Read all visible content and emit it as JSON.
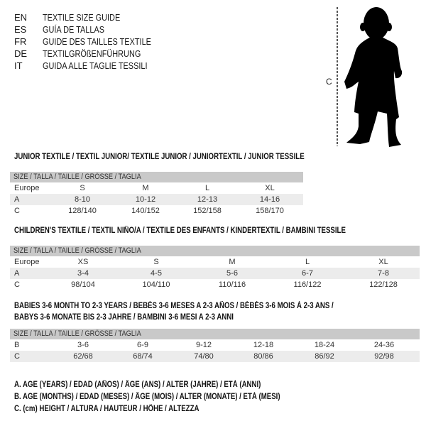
{
  "languages": [
    {
      "code": "EN",
      "text": "TEXTILE SIZE GUIDE"
    },
    {
      "code": "ES",
      "text": "GUÍA DE TALLAS"
    },
    {
      "code": "FR",
      "text": "GUIDE DES TAILLES TEXTILE"
    },
    {
      "code": "DE",
      "text": "TEXTILGRÖßENFÜHRUNG"
    },
    {
      "code": "IT",
      "text": "GUIDA ALLE TAGLIE TESSILI"
    }
  ],
  "figure": {
    "measure_label": "C",
    "icon": "child-silhouette"
  },
  "tables": [
    {
      "title_lines": [
        "JUNIOR TEXTILE / TEXTIL JUNIOR/ TEXTILE JUNIOR / JUNIORTEXTIL / JUNIOR TESSILE"
      ],
      "header": "SIZE / TALLA / TAILLE / GRÖSSE / TAGLIA",
      "rows": [
        {
          "label": "Europe",
          "values": [
            "S",
            "M",
            "L",
            "XL"
          ]
        },
        {
          "label": "A",
          "values": [
            "8-10",
            "10-12",
            "12-13",
            "14-16"
          ]
        },
        {
          "label": "C",
          "values": [
            "128/140",
            "140/152",
            "152/158",
            "158/170"
          ]
        }
      ]
    },
    {
      "title_lines": [
        "CHILDREN'S TEXTILE / TEXTIL NIÑO/A / TEXTILE DES ENFANTS / KINDERTEXTIL / BAMBINI TESSILE"
      ],
      "header": "SIZE / TALLA / TAILLE / GRÖSSE / TAGLIA",
      "rows": [
        {
          "label": "Europe",
          "values": [
            "XS",
            "S",
            "M",
            "L",
            "XL"
          ]
        },
        {
          "label": "A",
          "values": [
            "3-4",
            "4-5",
            "5-6",
            "6-7",
            "7-8"
          ]
        },
        {
          "label": "C",
          "values": [
            "98/104",
            "104/110",
            "110/116",
            "116/122",
            "122/128"
          ]
        }
      ]
    },
    {
      "title_lines": [
        "BABIES 3-6 MONTH TO 2-3 YEARS / BEBÉS 3-6 MESES A 2-3 AÑOS / BÉBÉS 3-6 MOIS À 2-3 ANS /",
        "BABYS 3-6 MONATE BIS 2-3 JAHRE / BAMBINI 3-6 MESI A 2-3 ANNI"
      ],
      "header": "SIZE / TALLA / TAILLE / GRÖSSE / TAGLIA",
      "rows": [
        {
          "label": "B",
          "values": [
            "3-6",
            "6-9",
            "9-12",
            "12-18",
            "18-24",
            "24-36"
          ]
        },
        {
          "label": "C",
          "values": [
            "62/68",
            "68/74",
            "74/80",
            "80/86",
            "86/92",
            "92/98"
          ]
        }
      ]
    }
  ],
  "legend": [
    "A. AGE (YEARS) / EDAD (AÑOS) / ÂGE (ANS) / ALTER (JAHRE) / ETÀ (ANNI)",
    "B. AGE (MONTHS) / EDAD (MESES) / ÂGE (MOIS) / ALTER (MONATE) / ETÀ (MESI)",
    "C. (cm) HEIGHT / ALTURA / HAUTEUR / HÖHE / ALTEZZA"
  ]
}
